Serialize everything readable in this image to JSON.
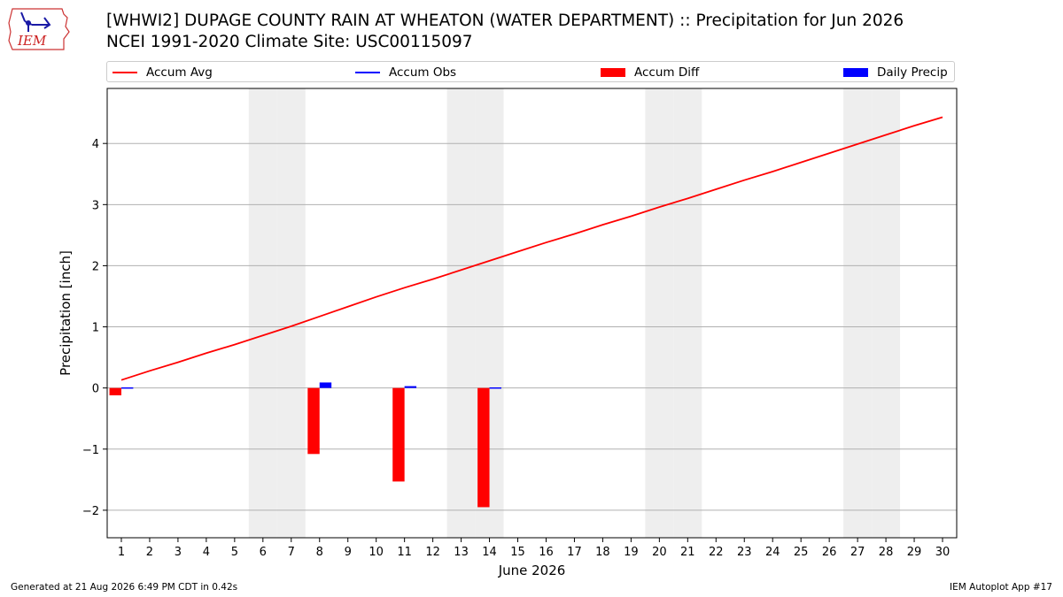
{
  "header": {
    "title_line1": "[WHWI2] DUPAGE COUNTY RAIN AT WHEATON (WATER DEPARTMENT) :: Precipitation for Jun 2026",
    "title_line2": "NCEI 1991-2020 Climate Site: USC00115097",
    "logo_text": "IEM"
  },
  "legend": {
    "accum_avg": "Accum Avg",
    "accum_obs": "Accum Obs",
    "accum_diff": "Accum Diff",
    "daily_precip": "Daily Precip"
  },
  "colors": {
    "accum_avg": "#ff0000",
    "accum_obs": "#0000ff",
    "accum_diff": "#ff0000",
    "daily_precip": "#0000ff",
    "weekend_shade": "#eeeeee",
    "grid": "#b0b0b0"
  },
  "chart_data": {
    "type": "bar",
    "xlabel": "June 2026",
    "ylabel": "Precipitation [inch]",
    "x": [
      1,
      2,
      3,
      4,
      5,
      6,
      7,
      8,
      9,
      10,
      11,
      12,
      13,
      14,
      15,
      16,
      17,
      18,
      19,
      20,
      21,
      22,
      23,
      24,
      25,
      26,
      27,
      28,
      29,
      30
    ],
    "ylim": [
      -2.45,
      4.9
    ],
    "yticks": [
      4,
      3,
      2,
      1,
      0,
      -1,
      -2
    ],
    "ytick_labels": [
      "4",
      "3",
      "2",
      "1",
      "0",
      "−1",
      "−2"
    ],
    "grid": true,
    "legend_position": "top",
    "shaded_days": [
      6,
      7,
      13,
      14,
      20,
      21,
      27,
      28
    ],
    "series": [
      {
        "name": "Accum Avg",
        "kind": "line",
        "x": [
          1,
          2,
          3,
          4,
          5,
          6,
          7,
          8,
          9,
          10,
          11,
          12,
          13,
          14,
          15,
          16,
          17,
          18,
          19,
          20,
          21,
          22,
          23,
          24,
          25,
          26,
          27,
          28,
          29,
          30
        ],
        "values": [
          0.13,
          0.28,
          0.42,
          0.57,
          0.71,
          0.86,
          1.01,
          1.17,
          1.33,
          1.49,
          1.64,
          1.78,
          1.93,
          2.08,
          2.23,
          2.38,
          2.52,
          2.67,
          2.81,
          2.96,
          3.1,
          3.25,
          3.4,
          3.54,
          3.69,
          3.84,
          3.99,
          4.14,
          4.29,
          4.43
        ]
      },
      {
        "name": "Accum Diff",
        "kind": "bar",
        "x": [
          1,
          8,
          11,
          14
        ],
        "values": [
          -0.12,
          -1.08,
          -1.53,
          -1.95
        ]
      },
      {
        "name": "Daily Precip",
        "kind": "bar",
        "x": [
          1,
          8,
          11,
          14
        ],
        "values": [
          0.01,
          0.09,
          0.03,
          0.01
        ]
      }
    ]
  },
  "footer": {
    "generated": "Generated at 21 Aug 2026 6:49 PM CDT in 0.42s",
    "app": "IEM Autoplot App #17"
  }
}
